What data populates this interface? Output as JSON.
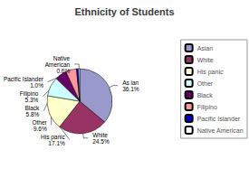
{
  "chart_data": {
    "type": "pie",
    "title": "Ethnicity of Students",
    "categories": [
      "Asian",
      "White",
      "His panic",
      "Other",
      "Black",
      "Filipino",
      "Pacific Islander",
      "Native American"
    ],
    "values": [
      36.1,
      24.5,
      17.1,
      9.6,
      5.8,
      5.3,
      1.0,
      0.6
    ],
    "value_labels": [
      "As ian\n36.1%",
      "White\n24.5%",
      "His panic\n17.1%",
      "Other\n9.6%",
      "Black\n5.8%",
      "Filipino\n5.3%",
      "Pacific Islander\n1.0%",
      "Native\nAmerican\n0.6%"
    ],
    "data_labels": true,
    "colors": [
      "#9999CC",
      "#993366",
      "#FFFFCC",
      "#CCFFFF",
      "#660066",
      "#FF9999",
      "#0000CC",
      "#FFFFFF"
    ],
    "legend": "right"
  }
}
